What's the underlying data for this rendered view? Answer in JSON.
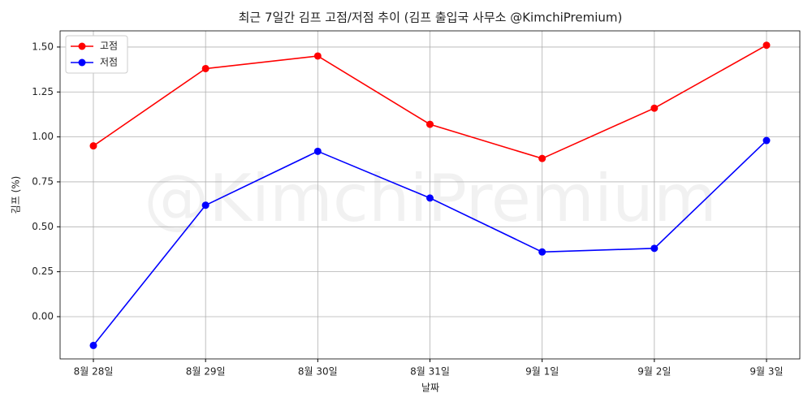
{
  "chart_data": {
    "type": "line",
    "title": "최근 7일간 김프 고점/저점 추이 (김프 출입국 사무소 @KimchiPremium)",
    "watermark": "@KimchiPremium",
    "x_label": "날짜",
    "y_label": "김프 (%)",
    "categories": [
      "8월 28일",
      "8월 29일",
      "8월 30일",
      "8월 31일",
      "9월 1일",
      "9월 2일",
      "9월 3일"
    ],
    "series": [
      {
        "name": "고점",
        "color": "#ff0000",
        "values": [
          0.95,
          1.38,
          1.45,
          1.07,
          0.88,
          1.16,
          1.51
        ]
      },
      {
        "name": "저점",
        "color": "#0000ff",
        "values": [
          -0.16,
          0.62,
          0.92,
          0.66,
          0.36,
          0.38,
          0.98
        ]
      }
    ],
    "ylim": [
      -0.235,
      1.59
    ],
    "yticks": [
      {
        "value": 0,
        "label": "0.00"
      },
      0.25,
      {
        "value": 0.5,
        "label": "0.50"
      },
      0.75,
      {
        "value": 1,
        "label": "1.00"
      },
      1.25,
      {
        "value": 1.5,
        "label": "1.50"
      }
    ],
    "grid": true,
    "legend": "upper left"
  }
}
